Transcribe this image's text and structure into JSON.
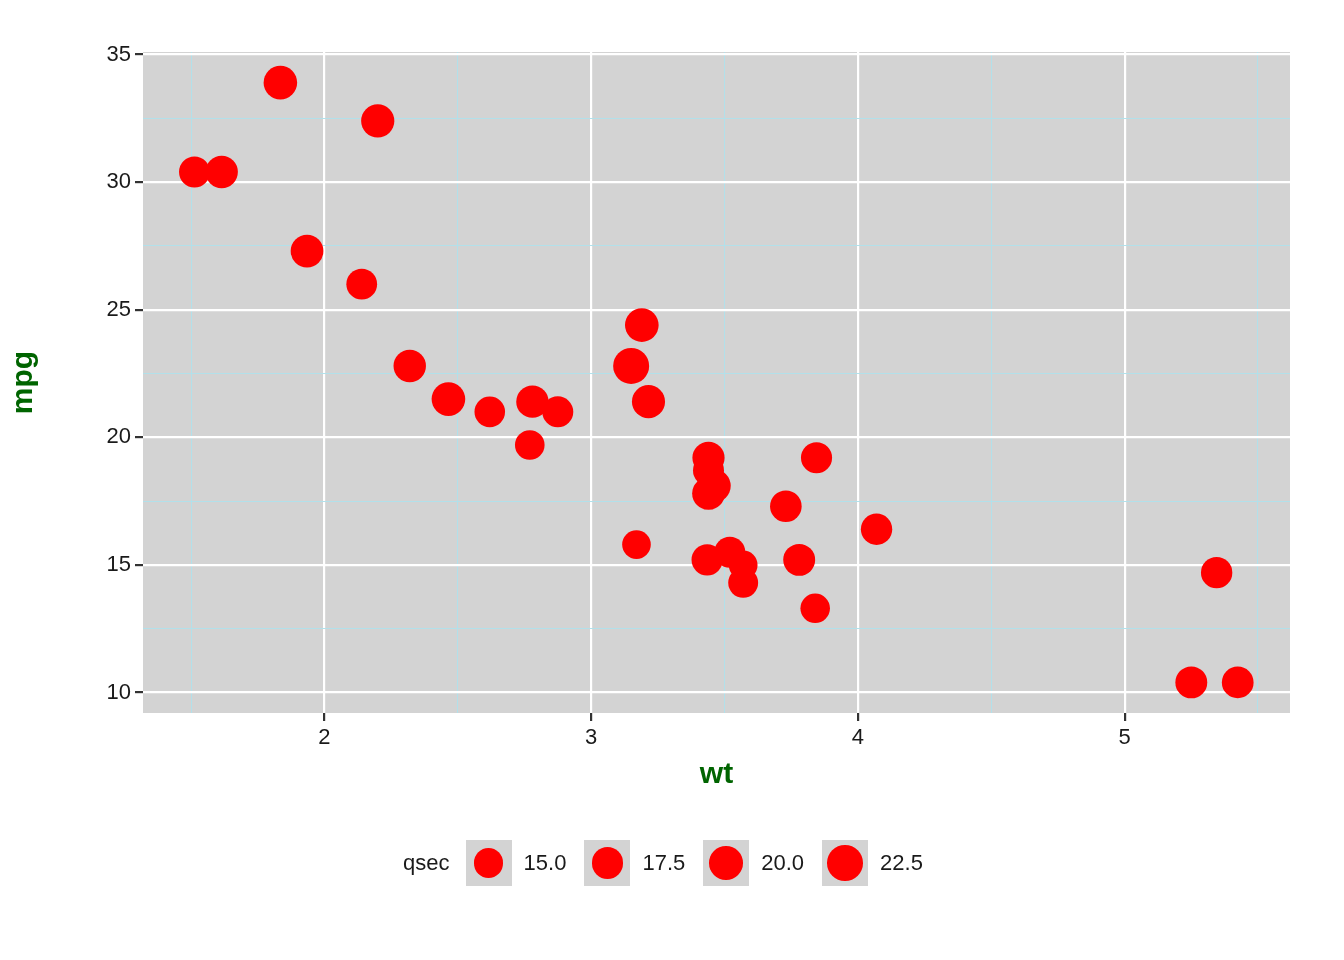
{
  "chart_data": {
    "type": "bubble",
    "xlabel": "wt",
    "ylabel": "mpg",
    "legend_title": "qsec",
    "color": "#ff0000",
    "x": [
      2.62,
      2.875,
      2.32,
      3.215,
      3.44,
      3.46,
      3.57,
      3.19,
      3.15,
      3.44,
      3.44,
      4.07,
      3.73,
      3.78,
      5.25,
      5.424,
      5.345,
      2.2,
      1.615,
      1.835,
      2.465,
      3.52,
      3.435,
      3.84,
      3.845,
      1.935,
      2.14,
      1.513,
      3.17,
      2.77,
      3.57,
      2.78
    ],
    "values": [
      21.0,
      21.0,
      22.8,
      21.4,
      18.7,
      18.1,
      14.3,
      24.4,
      22.8,
      19.2,
      17.8,
      16.4,
      17.3,
      15.2,
      10.4,
      10.4,
      14.7,
      32.4,
      30.4,
      33.9,
      21.5,
      15.5,
      15.2,
      13.3,
      19.2,
      27.3,
      26.0,
      30.4,
      15.8,
      19.7,
      15.0,
      21.4
    ],
    "sizes": [
      16.5,
      17.0,
      18.6,
      19.4,
      17.0,
      20.2,
      15.8,
      20.0,
      22.9,
      18.3,
      18.9,
      17.4,
      17.6,
      18.0,
      18.0,
      17.8,
      17.4,
      19.5,
      18.5,
      19.9,
      20.0,
      16.9,
      17.3,
      15.4,
      17.1,
      18.9,
      16.7,
      16.9,
      14.5,
      15.5,
      14.6,
      18.6
    ],
    "size_legend": [
      {
        "value": 15,
        "label": "15.0"
      },
      {
        "value": 17.5,
        "label": "17.5"
      },
      {
        "value": 20,
        "label": "20.0"
      },
      {
        "value": 22.5,
        "label": "22.5"
      }
    ],
    "xlim": [
      1.32,
      5.62
    ],
    "ylim": [
      9.2,
      35.1
    ],
    "xticks": [
      {
        "value": 1.5,
        "label": null
      },
      2,
      {
        "value": 2.5,
        "label": null
      },
      3,
      {
        "value": 3.5,
        "label": null
      },
      4,
      {
        "value": 4.5,
        "label": null
      },
      5,
      {
        "value": 5.5,
        "label": null
      }
    ],
    "yticks": [
      10,
      {
        "value": 12.5,
        "label": null
      },
      15,
      {
        "value": 17.5,
        "label": null
      },
      20,
      {
        "value": 22.5,
        "label": null
      },
      25,
      {
        "value": 27.5,
        "label": null
      },
      30,
      {
        "value": 32.5,
        "label": null
      },
      35
    ],
    "grid": true
  }
}
